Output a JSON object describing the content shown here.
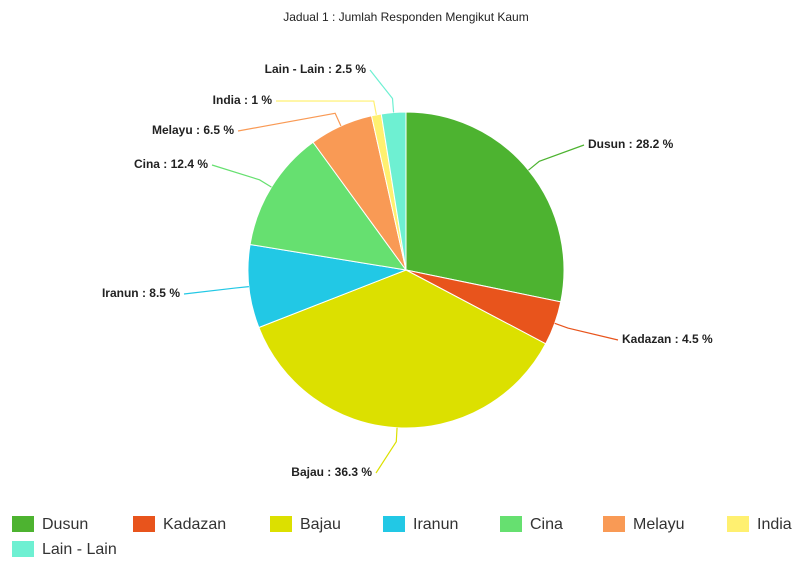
{
  "chart_data": {
    "type": "pie",
    "title": "Jadual 1 : Jumlah Responden Mengikut Kaum",
    "categories": [
      "Dusun",
      "Kadazan",
      "Bajau",
      "Iranun",
      "Cina",
      "Melayu",
      "India",
      "Lain - Lain"
    ],
    "values": [
      28.2,
      4.5,
      36.3,
      8.5,
      12.4,
      6.5,
      1,
      2.5
    ],
    "value_labels": [
      "Dusun : 28.2 %",
      "Kadazan : 4.5 %",
      "Bajau : 36.3 %",
      "Iranun : 8.5 %",
      "Cina : 12.4 %",
      "Melayu : 6.5 %",
      "India : 1 %",
      "Lain - Lain : 2.5 %"
    ],
    "colors": [
      "#4db330",
      "#e8541c",
      "#dce000",
      "#22c8e5",
      "#66e070",
      "#f99a55",
      "#fff070",
      "#6ef0d2"
    ],
    "legend": "bottom"
  }
}
